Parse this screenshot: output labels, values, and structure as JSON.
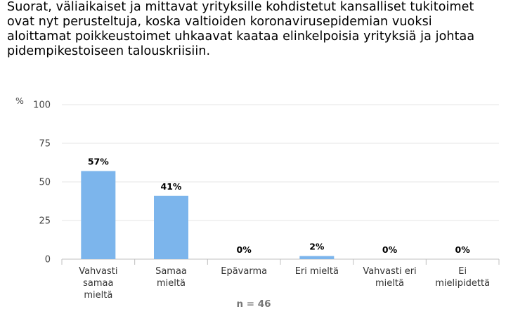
{
  "title": "Suorat, väliaikaiset ja mittavat yrityksille kohdistetut kansalliset tukitoimet ovat nyt perusteltuja, koska valtioiden koronavirusepidemian vuoksi aloittamat poikkeustoimet uhkaavat kaataa elinkelpoisia yrityksiä ja johtaa pidempikestoiseen talouskriisiin.",
  "chart_data": {
    "type": "bar",
    "title": "Suorat, väliaikaiset ja mittavat yrityksille kohdistetut kansalliset tukitoimet ovat nyt perusteltuja, koska valtioiden koronavirusepidemian vuoksi aloittamat poikkeustoimet uhkaavat kaataa elinkelpoisia yrityksiä ja johtaa pidempikestoiseen talouskriisiin.",
    "y_unit": "%",
    "categories": [
      [
        "Vahvasti",
        "samaa",
        "mieltä"
      ],
      [
        "Samaa",
        "mieltä"
      ],
      [
        "Epävarma"
      ],
      [
        "Eri mieltä"
      ],
      [
        "Vahvasti eri",
        "mieltä"
      ],
      [
        "Ei",
        "mielipidettä"
      ]
    ],
    "values": [
      57,
      41,
      0,
      2,
      0,
      0
    ],
    "data_labels": [
      "57%",
      "41%",
      "0%",
      "2%",
      "0%",
      "0%"
    ],
    "yticks": [
      "0",
      "25",
      "50",
      "75",
      "100"
    ],
    "ylim": [
      0,
      100
    ],
    "grid": true,
    "bar_color": "#7cb5ec",
    "n_label": "n = 46"
  }
}
